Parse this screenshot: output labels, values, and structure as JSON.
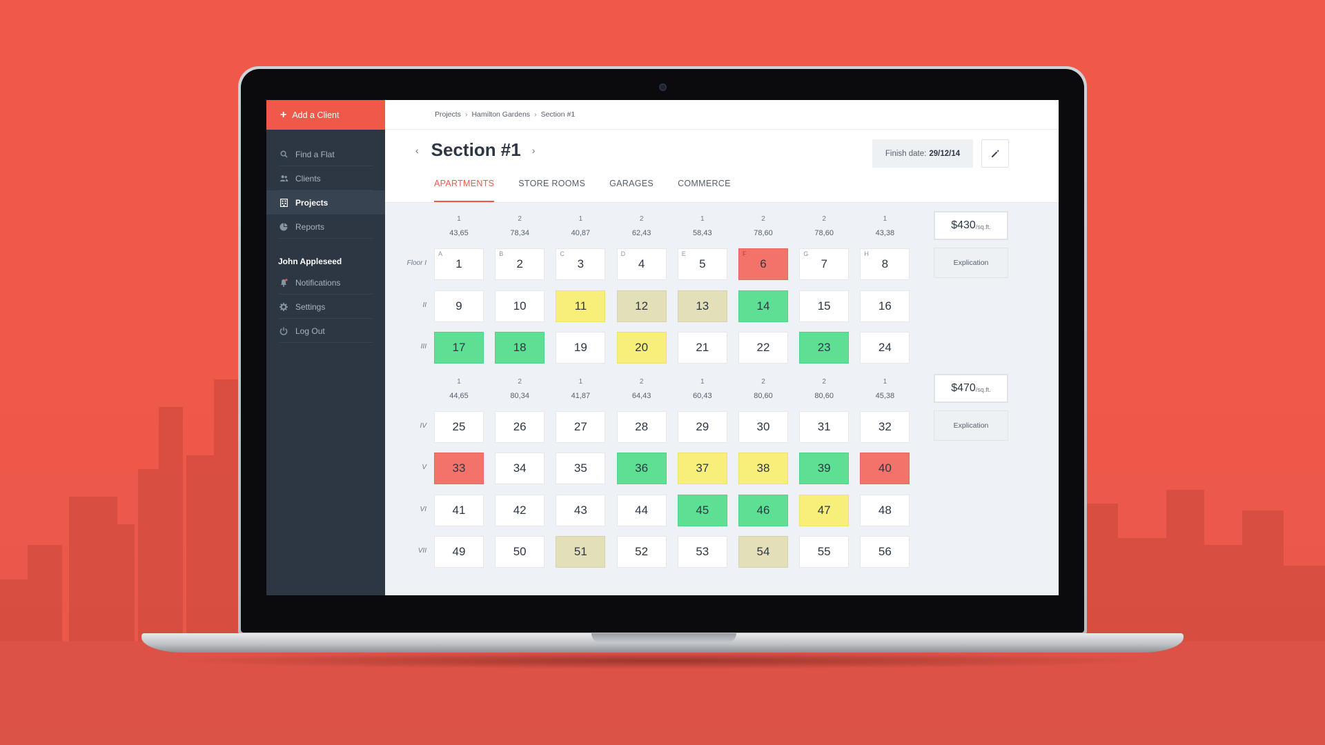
{
  "sidebar": {
    "add_client": "Add a Client",
    "items": [
      {
        "label": "Find a Flat",
        "icon": "search-icon"
      },
      {
        "label": "Clients",
        "icon": "users-icon"
      },
      {
        "label": "Projects",
        "icon": "building-icon",
        "active": true
      },
      {
        "label": "Reports",
        "icon": "pie-chart-icon"
      }
    ],
    "user_name": "John Appleseed",
    "user_items": [
      {
        "label": "Notifications",
        "icon": "bell-icon"
      },
      {
        "label": "Settings",
        "icon": "gear-icon"
      },
      {
        "label": "Log Out",
        "icon": "power-icon"
      }
    ]
  },
  "breadcrumb": [
    "Projects",
    "Hamilton Gardens",
    "Section #1"
  ],
  "header": {
    "title": "Section #1",
    "finish_label": "Finish date:",
    "finish_date": "29/12/14"
  },
  "tabs": [
    "APARTMENTS",
    "STORE ROOMS",
    "GARAGES",
    "COMMERCE"
  ],
  "active_tab": "APARTMENTS",
  "colors": {
    "accent": "#f0584a",
    "sold": "#f3736b",
    "available": "#5ee094",
    "reserved": "#f8ee7a",
    "booked": "#e3dfb9"
  },
  "blocks": [
    {
      "columns": [
        {
          "rooms": "1",
          "area": "43,65"
        },
        {
          "rooms": "2",
          "area": "78,34"
        },
        {
          "rooms": "1",
          "area": "40,87"
        },
        {
          "rooms": "2",
          "area": "62,43"
        },
        {
          "rooms": "1",
          "area": "58,43"
        },
        {
          "rooms": "2",
          "area": "78,60"
        },
        {
          "rooms": "2",
          "area": "78,60"
        },
        {
          "rooms": "1",
          "area": "43,38"
        }
      ],
      "letters": [
        "A",
        "B",
        "C",
        "D",
        "E",
        "F",
        "G",
        "H"
      ],
      "price": "$430",
      "price_unit": "/sq.ft.",
      "explication": "Explication",
      "floors": [
        {
          "label": "Floor I",
          "units": [
            {
              "n": "1",
              "s": ""
            },
            {
              "n": "2",
              "s": ""
            },
            {
              "n": "3",
              "s": ""
            },
            {
              "n": "4",
              "s": ""
            },
            {
              "n": "5",
              "s": ""
            },
            {
              "n": "6",
              "s": "red"
            },
            {
              "n": "7",
              "s": ""
            },
            {
              "n": "8",
              "s": ""
            }
          ]
        },
        {
          "label": "II",
          "units": [
            {
              "n": "9",
              "s": ""
            },
            {
              "n": "10",
              "s": ""
            },
            {
              "n": "11",
              "s": "yellow"
            },
            {
              "n": "12",
              "s": "tan"
            },
            {
              "n": "13",
              "s": "tan"
            },
            {
              "n": "14",
              "s": "green"
            },
            {
              "n": "15",
              "s": ""
            },
            {
              "n": "16",
              "s": ""
            }
          ]
        },
        {
          "label": "III",
          "units": [
            {
              "n": "17",
              "s": "green"
            },
            {
              "n": "18",
              "s": "green"
            },
            {
              "n": "19",
              "s": ""
            },
            {
              "n": "20",
              "s": "yellow"
            },
            {
              "n": "21",
              "s": ""
            },
            {
              "n": "22",
              "s": ""
            },
            {
              "n": "23",
              "s": "green"
            },
            {
              "n": "24",
              "s": ""
            }
          ]
        }
      ]
    },
    {
      "columns": [
        {
          "rooms": "1",
          "area": "44,65"
        },
        {
          "rooms": "2",
          "area": "80,34"
        },
        {
          "rooms": "1",
          "area": "41,87"
        },
        {
          "rooms": "2",
          "area": "64,43"
        },
        {
          "rooms": "1",
          "area": "60,43"
        },
        {
          "rooms": "2",
          "area": "80,60"
        },
        {
          "rooms": "2",
          "area": "80,60"
        },
        {
          "rooms": "1",
          "area": "45,38"
        }
      ],
      "letters": [],
      "price": "$470",
      "price_unit": "/sq.ft.",
      "explication": "Explication",
      "floors": [
        {
          "label": "IV",
          "units": [
            {
              "n": "25",
              "s": ""
            },
            {
              "n": "26",
              "s": ""
            },
            {
              "n": "27",
              "s": ""
            },
            {
              "n": "28",
              "s": ""
            },
            {
              "n": "29",
              "s": ""
            },
            {
              "n": "30",
              "s": ""
            },
            {
              "n": "31",
              "s": ""
            },
            {
              "n": "32",
              "s": ""
            }
          ]
        },
        {
          "label": "V",
          "units": [
            {
              "n": "33",
              "s": "red"
            },
            {
              "n": "34",
              "s": ""
            },
            {
              "n": "35",
              "s": ""
            },
            {
              "n": "36",
              "s": "green"
            },
            {
              "n": "37",
              "s": "yellow"
            },
            {
              "n": "38",
              "s": "yellow"
            },
            {
              "n": "39",
              "s": "green"
            },
            {
              "n": "40",
              "s": "red"
            }
          ]
        },
        {
          "label": "VI",
          "units": [
            {
              "n": "41",
              "s": ""
            },
            {
              "n": "42",
              "s": ""
            },
            {
              "n": "43",
              "s": ""
            },
            {
              "n": "44",
              "s": ""
            },
            {
              "n": "45",
              "s": "green"
            },
            {
              "n": "46",
              "s": "green"
            },
            {
              "n": "47",
              "s": "yellow"
            },
            {
              "n": "48",
              "s": ""
            }
          ]
        },
        {
          "label": "VII",
          "units": [
            {
              "n": "49",
              "s": ""
            },
            {
              "n": "50",
              "s": ""
            },
            {
              "n": "51",
              "s": "tan"
            },
            {
              "n": "52",
              "s": ""
            },
            {
              "n": "53",
              "s": ""
            },
            {
              "n": "54",
              "s": "tan"
            },
            {
              "n": "55",
              "s": ""
            },
            {
              "n": "56",
              "s": ""
            }
          ]
        }
      ]
    }
  ]
}
